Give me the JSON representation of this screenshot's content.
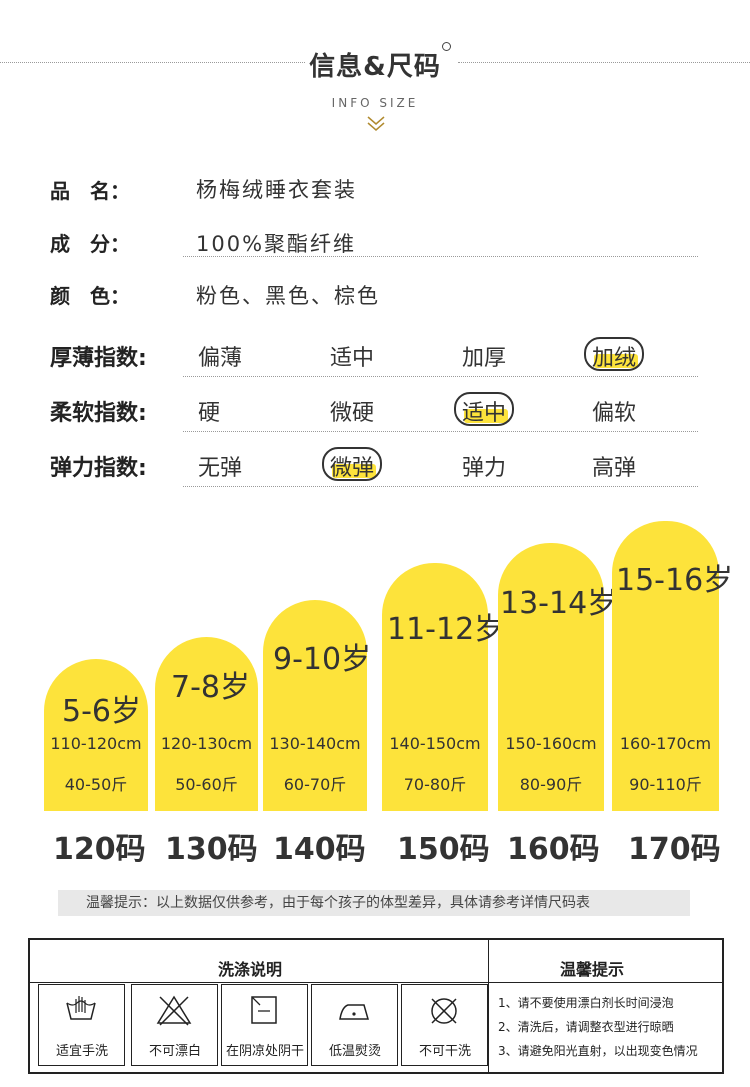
{
  "header": {
    "title": "信息&尺码",
    "subtitle": "INFO SIZE"
  },
  "info": {
    "name_label": "品　名：",
    "name_value": "杨梅绒睡衣套装",
    "material_label": "成　分：",
    "material_value": "100%聚酯纤维",
    "color_label": "颜　色：",
    "color_value": "粉色、黑色、棕色"
  },
  "indices": [
    {
      "label": "厚薄指数:",
      "options": [
        "偏薄",
        "适中",
        "加厚",
        "加绒"
      ],
      "selected": 3
    },
    {
      "label": "柔软指数:",
      "options": [
        "硬",
        "微硬",
        "适中",
        "偏软"
      ],
      "selected": 2
    },
    {
      "label": "弹力指数:",
      "options": [
        "无弹",
        "微弹",
        "弹力",
        "高弹"
      ],
      "selected": 1
    }
  ],
  "sizes": [
    {
      "age": "5-6岁",
      "height": "110-120cm",
      "weight": "40-50斤",
      "code": "120码"
    },
    {
      "age": "7-8岁",
      "height": "120-130cm",
      "weight": "50-60斤",
      "code": "130码"
    },
    {
      "age": "9-10岁",
      "height": "130-140cm",
      "weight": "60-70斤",
      "code": "140码"
    },
    {
      "age": "11-12岁",
      "height": "140-150cm",
      "weight": "70-80斤",
      "code": "150码"
    },
    {
      "age": "13-14岁",
      "height": "150-160cm",
      "weight": "80-90斤",
      "code": "160码"
    },
    {
      "age": "15-16岁",
      "height": "160-170cm",
      "weight": "90-110斤",
      "code": "170码"
    }
  ],
  "tip": "温馨提示：以上数据仅供参考，由于每个孩子的体型差异，具体请参考详情尺码表",
  "care": {
    "wash_title": "洗涤说明",
    "tips_title": "温馨提示",
    "items": [
      {
        "label": "适宜手洗",
        "icon": "hand-wash-icon"
      },
      {
        "label": "不可漂白",
        "icon": "no-bleach-icon"
      },
      {
        "label": "在阴凉处阴干",
        "icon": "shade-dry-icon"
      },
      {
        "label": "低温熨烫",
        "icon": "low-iron-icon"
      },
      {
        "label": "不可干洗",
        "icon": "no-dry-clean-icon"
      }
    ],
    "notes": [
      "1、请不要使用漂白剂长时间浸泡",
      "2、清洗后，请调整衣型进行晾晒",
      "3、请避免阳光直射，以出现变色情况"
    ]
  },
  "colors": {
    "accent": "#fde33b",
    "text": "#333333"
  }
}
